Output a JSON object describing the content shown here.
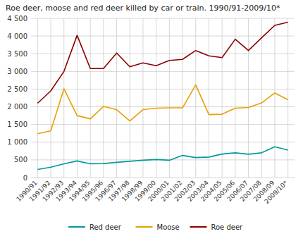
{
  "chart_data": {
    "type": "line",
    "title": "Roe deer, moose and red deer killed by car or train. 1990/91-2009/10*",
    "categories": [
      "1990/91",
      "1991/92",
      "1992/93",
      "1993/94",
      "1994/95",
      "1995/96",
      "1996/97",
      "1997/98",
      "1998/99",
      "1999/00",
      "2000/01",
      "2001/02",
      "2002/03",
      "2003/04",
      "2004/05",
      "2005/06",
      "2006/07",
      "2007/08",
      "2008/09",
      "2009/10*"
    ],
    "series": [
      {
        "name": "Red deer",
        "color": "#009999",
        "values": [
          230,
          295,
          390,
          470,
          390,
          395,
          430,
          460,
          490,
          510,
          490,
          625,
          565,
          580,
          665,
          700,
          660,
          700,
          870,
          775
        ]
      },
      {
        "name": "Moose",
        "color": "#E8A000",
        "values": [
          1240,
          1320,
          2510,
          1750,
          1660,
          2010,
          1920,
          1600,
          1920,
          1960,
          1970,
          1970,
          2620,
          1780,
          1790,
          1960,
          1980,
          2110,
          2390,
          2200
        ]
      },
      {
        "name": "Roe deer",
        "color": "#8B0000",
        "values": [
          2100,
          2450,
          3000,
          4020,
          3080,
          3080,
          3520,
          3130,
          3240,
          3160,
          3310,
          3340,
          3590,
          3440,
          3390,
          3910,
          3590,
          3950,
          4300,
          4390
        ]
      }
    ],
    "ylim": [
      0,
      4500
    ],
    "yticks": [
      0,
      500,
      {
        "value": 1000,
        "label": "1 000"
      },
      {
        "value": 1500,
        "label": "1 500"
      },
      {
        "value": 2000,
        "label": "2 000"
      },
      {
        "value": 2500,
        "label": "2 500"
      },
      {
        "value": 3000,
        "label": "3 000"
      },
      {
        "value": 3500,
        "label": "3 500"
      },
      {
        "value": 4000,
        "label": "4 000"
      },
      {
        "value": 4500,
        "label": "4 500"
      }
    ],
    "grid": true,
    "legend": "bottom"
  }
}
